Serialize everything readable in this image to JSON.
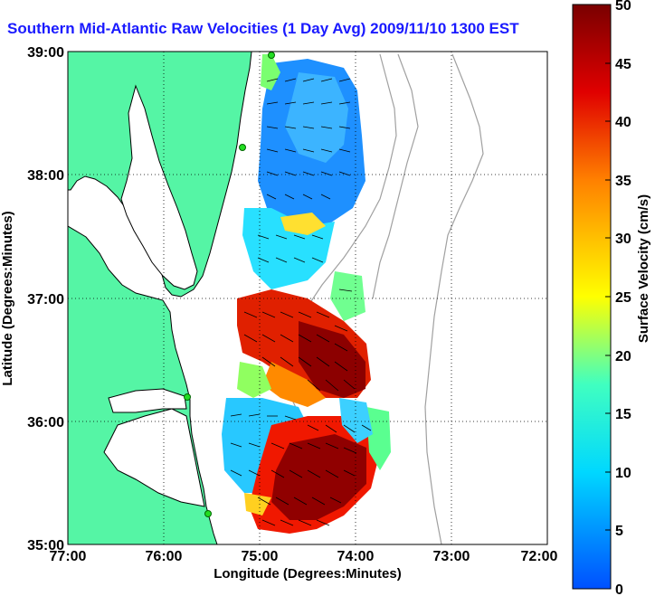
{
  "title": "Southern Mid-Atlantic Raw Velocities (1 Day Avg) 2009/11/10 1300 EST",
  "map": {
    "x_label": "Longitude (Degrees:Minutes)",
    "y_label": "Latitude (Degrees:Minutes)",
    "x_ticks": [
      "77:00",
      "76:00",
      "75:00",
      "74:00",
      "73:00",
      "72:00"
    ],
    "y_ticks": [
      "39:00",
      "38:00",
      "37:00",
      "36:00",
      "35:00"
    ],
    "lon_range": [
      -77,
      -72
    ],
    "lat_range": [
      35,
      39
    ],
    "grid": "dotted",
    "land_color": "#55f5a5",
    "bathymetry_color": "#a0a0a0",
    "station_color": "#22dd22"
  },
  "colorbar": {
    "label": "Surface Velocity (cm/s)",
    "ticks": [
      "0",
      "5",
      "10",
      "15",
      "20",
      "25",
      "30",
      "35",
      "40",
      "45",
      "50"
    ],
    "range": [
      0,
      50
    ],
    "colormap": "jet"
  }
}
